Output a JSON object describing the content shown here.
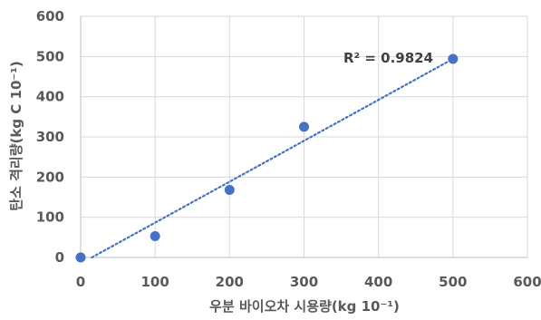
{
  "chart_data": {
    "type": "scatter",
    "xlabel": "우분 바이오차 시용량(kg 10⁻¹)",
    "ylabel": "탄소 격리량(kg C 10⁻¹)",
    "xlim": [
      0,
      600
    ],
    "ylim": [
      0,
      600
    ],
    "x_ticks": [
      "0",
      "100",
      "200",
      "300",
      "400",
      "500",
      "600"
    ],
    "y_ticks": [
      "0",
      "100",
      "200",
      "300",
      "400",
      "500",
      "600"
    ],
    "grid": true,
    "series": [
      {
        "x": [
          0,
          100,
          200,
          300,
          500
        ],
        "y": [
          0,
          53,
          168,
          325,
          494
        ],
        "color": "#4472C4"
      }
    ],
    "trendline": {
      "type": "linear",
      "x": [
        15,
        500
      ],
      "y": [
        0,
        494
      ],
      "color": "#4472C4",
      "style": "dotted"
    },
    "annotation": "R² = 0.9824"
  }
}
